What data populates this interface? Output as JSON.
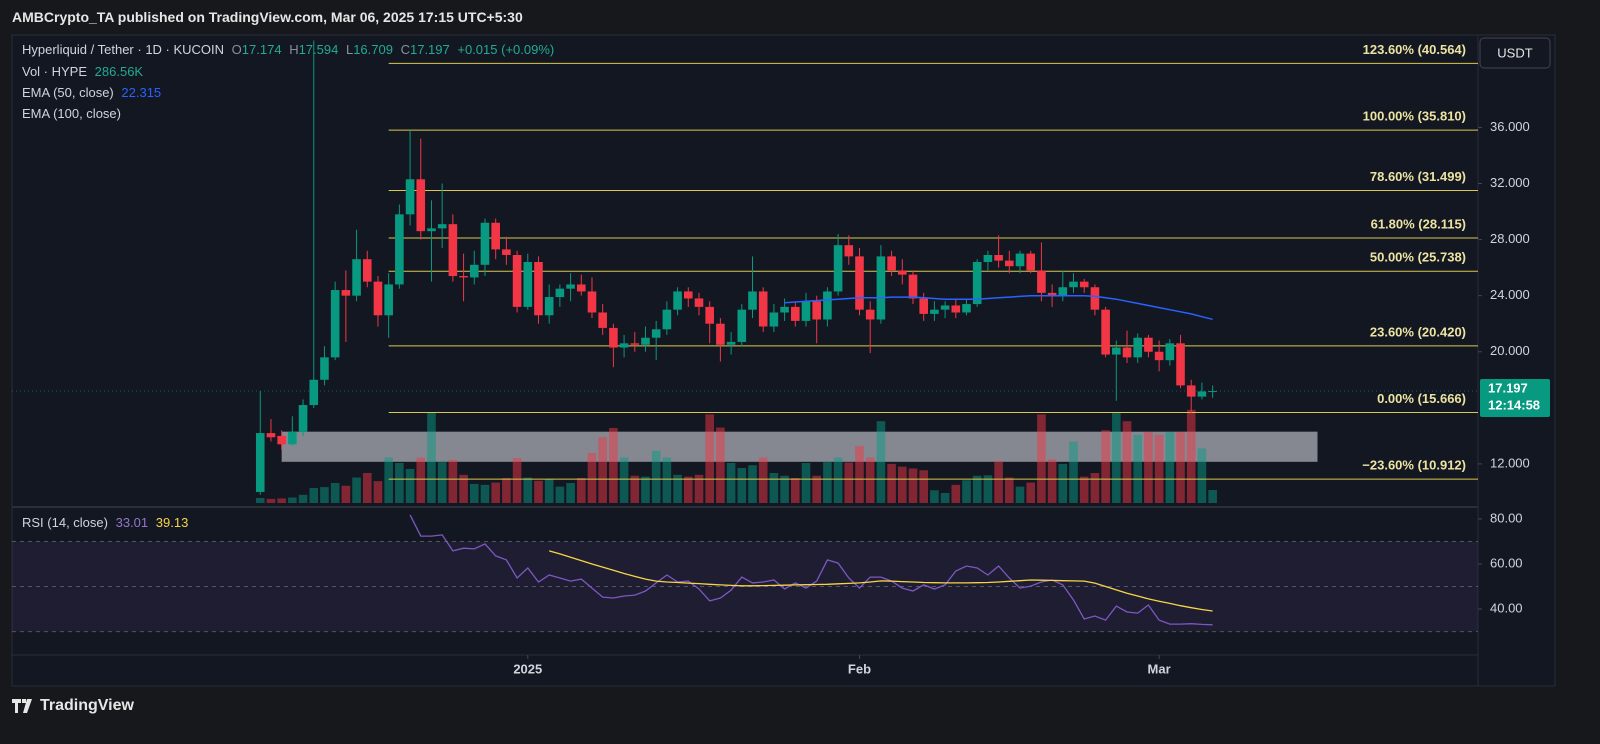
{
  "header": {
    "publisher": "AMBCrypto_TA published on TradingView.com, Mar 06, 2025 17:15 UTC+5:30"
  },
  "footer": {
    "brand": "TradingView"
  },
  "chart_data": {
    "type": "candlestick",
    "symbol": "Hyperliquid / Tether · 1D · KUCOIN",
    "ohlc_letters": [
      "O",
      "H",
      "L",
      "C"
    ],
    "change": "+0.015 (+0.09%)",
    "currency": "USDT",
    "countdown": "12:14:58",
    "up_color": "#089981",
    "down_color": "#f23645",
    "ohlc": [
      [
        10.0,
        17.2,
        9.8,
        14.2
      ],
      [
        14.2,
        15.2,
        13.6,
        13.9
      ],
      [
        14.0,
        14.4,
        13.0,
        13.4
      ],
      [
        13.4,
        15.4,
        13.3,
        14.3
      ],
      [
        14.3,
        16.6,
        14.0,
        16.2
      ],
      [
        16.2,
        42.2,
        16.0,
        18.0
      ],
      [
        18.0,
        20.4,
        17.6,
        19.6
      ],
      [
        19.6,
        25.0,
        19.4,
        24.4
      ],
      [
        24.4,
        25.8,
        20.7,
        24.0
      ],
      [
        24.0,
        28.7,
        23.6,
        26.6
      ],
      [
        26.6,
        27.2,
        24.6,
        25.0
      ],
      [
        25.0,
        25.4,
        21.8,
        22.6
      ],
      [
        22.6,
        25.6,
        21.0,
        24.8
      ],
      [
        24.8,
        30.5,
        24.5,
        29.8
      ],
      [
        29.8,
        35.8,
        29.0,
        32.3
      ],
      [
        32.3,
        35.2,
        28.0,
        28.6
      ],
      [
        28.6,
        30.8,
        25.0,
        28.8
      ],
      [
        28.8,
        32.0,
        27.4,
        29.1
      ],
      [
        29.1,
        29.8,
        25.0,
        25.4
      ],
      [
        25.4,
        27.0,
        23.6,
        25.3
      ],
      [
        25.3,
        27.2,
        24.8,
        26.2
      ],
      [
        26.2,
        29.5,
        25.4,
        29.2
      ],
      [
        29.2,
        29.5,
        26.6,
        27.3
      ],
      [
        27.3,
        28.2,
        26.2,
        26.9
      ],
      [
        26.9,
        27.2,
        22.8,
        23.2
      ],
      [
        23.2,
        27.0,
        23.0,
        26.4
      ],
      [
        26.4,
        26.8,
        22.0,
        22.6
      ],
      [
        22.6,
        24.8,
        22.0,
        23.9
      ],
      [
        23.9,
        24.8,
        23.2,
        24.5
      ],
      [
        24.5,
        25.6,
        23.6,
        24.8
      ],
      [
        24.8,
        25.5,
        24.0,
        24.3
      ],
      [
        24.3,
        25.3,
        22.4,
        22.8
      ],
      [
        22.8,
        23.4,
        21.2,
        21.7
      ],
      [
        21.7,
        22.0,
        18.9,
        20.3
      ],
      [
        20.3,
        21.2,
        19.6,
        20.6
      ],
      [
        20.6,
        21.4,
        20.0,
        20.5
      ],
      [
        20.5,
        21.8,
        20.0,
        21.0
      ],
      [
        21.0,
        22.2,
        19.4,
        21.6
      ],
      [
        21.6,
        23.6,
        21.2,
        23.0
      ],
      [
        23.0,
        24.6,
        22.6,
        24.3
      ],
      [
        24.3,
        24.6,
        23.2,
        23.8
      ],
      [
        23.8,
        24.2,
        22.6,
        23.2
      ],
      [
        23.2,
        23.6,
        20.6,
        22.0
      ],
      [
        22.0,
        22.4,
        19.3,
        20.5
      ],
      [
        20.5,
        21.4,
        19.8,
        20.7
      ],
      [
        20.7,
        23.4,
        20.4,
        23.0
      ],
      [
        23.0,
        26.8,
        22.4,
        24.3
      ],
      [
        24.3,
        24.6,
        21.4,
        21.8
      ],
      [
        21.8,
        23.4,
        21.4,
        22.8
      ],
      [
        22.8,
        23.8,
        22.2,
        23.2
      ],
      [
        23.2,
        23.6,
        21.8,
        22.2
      ],
      [
        22.2,
        24.2,
        21.8,
        23.6
      ],
      [
        23.6,
        24.0,
        20.6,
        22.3
      ],
      [
        22.3,
        24.6,
        21.8,
        24.3
      ],
      [
        24.3,
        28.4,
        24.0,
        27.6
      ],
      [
        27.6,
        28.3,
        26.2,
        26.8
      ],
      [
        26.8,
        27.4,
        22.6,
        23.0
      ],
      [
        23.0,
        23.6,
        19.9,
        22.3
      ],
      [
        22.3,
        27.6,
        22.0,
        26.8
      ],
      [
        26.8,
        27.2,
        25.4,
        25.8
      ],
      [
        25.8,
        26.6,
        24.8,
        25.5
      ],
      [
        25.5,
        25.8,
        23.4,
        23.8
      ],
      [
        23.8,
        24.2,
        22.2,
        22.7
      ],
      [
        22.7,
        23.6,
        22.2,
        23.0
      ],
      [
        23.0,
        23.6,
        22.4,
        23.3
      ],
      [
        23.3,
        23.8,
        22.4,
        22.8
      ],
      [
        22.8,
        23.8,
        22.6,
        23.4
      ],
      [
        23.4,
        26.6,
        23.2,
        26.4
      ],
      [
        26.4,
        27.2,
        25.8,
        26.9
      ],
      [
        26.9,
        28.3,
        26.0,
        26.5
      ],
      [
        26.5,
        27.2,
        25.6,
        26.1
      ],
      [
        26.1,
        27.2,
        25.6,
        27.0
      ],
      [
        27.0,
        27.2,
        25.6,
        25.8
      ],
      [
        25.8,
        27.8,
        23.6,
        24.2
      ],
      [
        24.2,
        24.8,
        23.2,
        24.0
      ],
      [
        24.0,
        25.8,
        23.6,
        24.6
      ],
      [
        24.6,
        25.6,
        24.2,
        25.0
      ],
      [
        25.0,
        25.2,
        24.2,
        24.6
      ],
      [
        24.6,
        24.8,
        22.6,
        23.0
      ],
      [
        23.0,
        23.2,
        19.6,
        19.8
      ],
      [
        19.8,
        20.8,
        16.5,
        20.3
      ],
      [
        20.3,
        21.5,
        19.2,
        19.6
      ],
      [
        19.6,
        21.3,
        19.2,
        21.0
      ],
      [
        21.0,
        21.2,
        19.6,
        20.0
      ],
      [
        20.0,
        20.8,
        18.6,
        19.4
      ],
      [
        19.4,
        20.9,
        19.0,
        20.6
      ],
      [
        20.6,
        21.2,
        17.4,
        17.6
      ],
      [
        17.6,
        18.0,
        15.6,
        16.8
      ],
      [
        16.8,
        17.8,
        16.6,
        17.17
      ],
      [
        17.174,
        17.594,
        16.709,
        17.197
      ]
    ],
    "xlim": [
      -23.2,
      113.8
    ],
    "xticks": [
      {
        "value": 25,
        "label": "2025"
      },
      {
        "value": 56,
        "label": "Feb"
      },
      {
        "value": 84,
        "label": "Mar"
      }
    ],
    "ylim": [
      9.07,
      42.59
    ],
    "yticks": [
      {
        "value": 12,
        "label": "12.000"
      },
      {
        "value": 20,
        "label": "20.000"
      },
      {
        "value": 24,
        "label": "24.000"
      },
      {
        "value": 28,
        "label": "28.000"
      },
      {
        "value": 32,
        "label": "32.000"
      },
      {
        "value": 36,
        "label": "36.000"
      }
    ],
    "volume": {
      "name": "Vol · HYPE",
      "last_label": "286.56K",
      "values": [
        110,
        90,
        100,
        120,
        180,
        330,
        350,
        440,
        380,
        560,
        660,
        480,
        1000,
        880,
        750,
        1000,
        2000,
        900,
        950,
        620,
        420,
        400,
        450,
        550,
        990,
        560,
        490,
        520,
        360,
        440,
        550,
        1100,
        1450,
        1650,
        1000,
        600,
        580,
        1150,
        1000,
        620,
        580,
        620,
        1950,
        1660,
        880,
        770,
        830,
        1000,
        660,
        600,
        550,
        880,
        600,
        900,
        1000,
        890,
        1250,
        1000,
        1800,
        860,
        800,
        760,
        720,
        280,
        220,
        400,
        500,
        600,
        610,
        920,
        560,
        360,
        450,
        1950,
        960,
        860,
        1350,
        580,
        660,
        1600,
        2000,
        1800,
        1500,
        1560,
        1500,
        1560,
        1560,
        2050,
        1200,
        286.56
      ]
    },
    "ema": {
      "name": "EMA (50, close)",
      "color": "#2962ff",
      "values": [
        null,
        null,
        null,
        null,
        null,
        null,
        null,
        null,
        null,
        null,
        null,
        null,
        null,
        null,
        null,
        null,
        null,
        null,
        null,
        null,
        null,
        null,
        null,
        null,
        null,
        null,
        null,
        null,
        null,
        null,
        null,
        null,
        null,
        null,
        null,
        null,
        null,
        null,
        null,
        null,
        null,
        null,
        null,
        null,
        null,
        null,
        null,
        null,
        null,
        23.5,
        23.55,
        23.6,
        23.65,
        23.7,
        23.75,
        23.8,
        23.85,
        23.85,
        23.85,
        23.9,
        23.9,
        23.9,
        23.85,
        23.8,
        23.75,
        23.75,
        23.75,
        23.75,
        23.8,
        23.85,
        23.9,
        23.95,
        24.0,
        24.0,
        24.0,
        24.0,
        24.0,
        24.0,
        23.95,
        23.85,
        23.75,
        23.6,
        23.45,
        23.3,
        23.15,
        23.0,
        22.85,
        22.7,
        22.5,
        22.315
      ]
    },
    "ema100": {
      "name": "EMA (100, close)"
    },
    "fib": {
      "x_start": 12,
      "color": "#d8c851",
      "levels": [
        {
          "label": "123.60% (40.564)",
          "value": 40.564
        },
        {
          "label": "100.00% (35.810)",
          "value": 35.81
        },
        {
          "label": "78.60% (31.499)",
          "value": 31.499
        },
        {
          "label": "61.80% (28.115)",
          "value": 28.115
        },
        {
          "label": "50.00% (25.738)",
          "value": 25.738
        },
        {
          "label": "23.60% (20.420)",
          "value": 20.42
        },
        {
          "label": "0.00% (15.666)",
          "value": 15.666
        },
        {
          "label": "−23.60% (10.912)",
          "value": 10.912
        }
      ]
    },
    "zone": {
      "x": [
        2,
        98.8
      ],
      "y": [
        12.15,
        14.3
      ]
    },
    "rsi": {
      "name": "RSI (14, close)",
      "color": "#7e57c2",
      "ma_color": "#f7d547",
      "ylim": [
        19.6,
        85.3
      ],
      "yticks": [
        {
          "value": 40,
          "label": "40.00"
        },
        {
          "value": 60,
          "label": "60.00"
        },
        {
          "value": 80,
          "label": "80.00"
        }
      ],
      "bands": [
        70,
        50,
        30
      ],
      "values": [
        null,
        null,
        null,
        null,
        null,
        null,
        null,
        null,
        null,
        null,
        null,
        null,
        null,
        null,
        81.8,
        72.4,
        72.4,
        72.9,
        65.8,
        67.0,
        66.7,
        68.9,
        63.6,
        61.8,
        53.8,
        58.2,
        52.0,
        55.1,
        53.8,
        52.4,
        53.3,
        49.3,
        45.3,
        44.9,
        45.8,
        46.2,
        48.0,
        51.6,
        55.1,
        52.0,
        52.4,
        48.9,
        43.6,
        44.9,
        48.4,
        54.2,
        51.6,
        52.0,
        52.9,
        48.9,
        51.6,
        49.3,
        52.4,
        61.8,
        60.4,
        53.8,
        49.3,
        54.2,
        54.2,
        52.4,
        49.3,
        48.0,
        50.7,
        48.9,
        50.7,
        56.9,
        59.1,
        58.2,
        55.1,
        59.1,
        53.8,
        49.3,
        50.2,
        52.0,
        52.9,
        50.7,
        44.0,
        35.6,
        36.9,
        35.1,
        41.3,
        38.7,
        38.2,
        41.8,
        35.1,
        33.3,
        33.3,
        33.5,
        33.2,
        33.01
      ],
      "ma_values": [
        null,
        null,
        null,
        null,
        null,
        null,
        null,
        null,
        null,
        null,
        null,
        null,
        null,
        null,
        null,
        null,
        null,
        null,
        null,
        null,
        null,
        null,
        null,
        null,
        null,
        null,
        null,
        65.8,
        64.5,
        63.0,
        61.5,
        60.0,
        58.6,
        57.2,
        55.8,
        54.5,
        53.3,
        52.4,
        52.0,
        51.8,
        51.5,
        51.3,
        51.0,
        50.7,
        50.5,
        50.3,
        50.3,
        50.4,
        50.5,
        50.6,
        50.7,
        50.8,
        50.9,
        51.0,
        51.2,
        51.4,
        51.6,
        52.0,
        52.5,
        52.4,
        52.2,
        52.0,
        51.8,
        51.7,
        51.6,
        51.6,
        51.6,
        51.7,
        51.8,
        52.0,
        52.3,
        52.6,
        52.9,
        52.8,
        52.7,
        52.6,
        52.5,
        52.4,
        51.5,
        50.0,
        48.5,
        47.0,
        45.8,
        44.5,
        43.5,
        42.5,
        41.5,
        40.6,
        39.8,
        39.13
      ]
    }
  }
}
